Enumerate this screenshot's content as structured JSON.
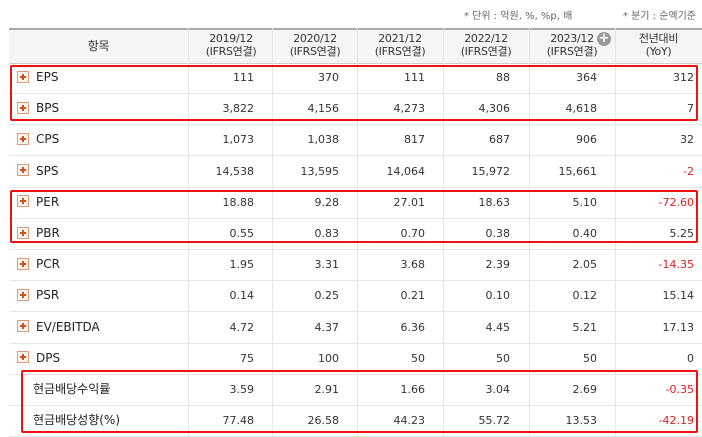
{
  "units_note": "* 단위 : 억원, %, %p, 배",
  "period_note": "* 분기 : 순액기준",
  "header": {
    "item_label": "항목",
    "periods": [
      {
        "year": "2019/12",
        "basis": "(IFRS연결)"
      },
      {
        "year": "2020/12",
        "basis": "(IFRS연결)"
      },
      {
        "year": "2021/12",
        "basis": "(IFRS연결)"
      },
      {
        "year": "2022/12",
        "basis": "(IFRS연결)"
      },
      {
        "year": "2023/12",
        "basis": "(IFRS연결)"
      }
    ],
    "yoy_line1": "전년대비",
    "yoy_line2": "(YoY)",
    "expand_icon": "+"
  },
  "rows": [
    {
      "label": "EPS",
      "values": [
        "111",
        "370",
        "111",
        "88",
        "364"
      ],
      "yoy": "312",
      "negative": false,
      "expandable": true
    },
    {
      "label": "BPS",
      "values": [
        "3,822",
        "4,156",
        "4,273",
        "4,306",
        "4,618"
      ],
      "yoy": "7",
      "negative": false,
      "expandable": true
    },
    {
      "label": "CPS",
      "values": [
        "1,073",
        "1,038",
        "817",
        "687",
        "906"
      ],
      "yoy": "32",
      "negative": false,
      "expandable": true
    },
    {
      "label": "SPS",
      "values": [
        "14,538",
        "13,595",
        "14,064",
        "15,972",
        "15,661"
      ],
      "yoy": "-2",
      "negative": true,
      "expandable": true
    },
    {
      "label": "PER",
      "values": [
        "18.88",
        "9.28",
        "27.01",
        "18.63",
        "5.10"
      ],
      "yoy": "-72.60",
      "negative": true,
      "expandable": true
    },
    {
      "label": "PBR",
      "values": [
        "0.55",
        "0.83",
        "0.70",
        "0.38",
        "0.40"
      ],
      "yoy": "5.25",
      "negative": false,
      "expandable": true
    },
    {
      "label": "PCR",
      "values": [
        "1.95",
        "3.31",
        "3.68",
        "2.39",
        "2.05"
      ],
      "yoy": "-14.35",
      "negative": true,
      "expandable": true
    },
    {
      "label": "PSR",
      "values": [
        "0.14",
        "0.25",
        "0.21",
        "0.10",
        "0.12"
      ],
      "yoy": "15.14",
      "negative": false,
      "expandable": true
    },
    {
      "label": "EV/EBITDA",
      "values": [
        "4.72",
        "4.37",
        "6.36",
        "4.45",
        "5.21"
      ],
      "yoy": "17.13",
      "negative": false,
      "expandable": true
    },
    {
      "label": "DPS",
      "values": [
        "75",
        "100",
        "50",
        "50",
        "50"
      ],
      "yoy": "0",
      "negative": false,
      "expandable": true
    },
    {
      "label": "현금배당수익률",
      "values": [
        "3.59",
        "2.91",
        "1.66",
        "3.04",
        "2.69"
      ],
      "yoy": "-0.35",
      "negative": true,
      "expandable": false
    },
    {
      "label": "현금배당성향(%)",
      "values": [
        "77.48",
        "26.58",
        "44.23",
        "55.72",
        "13.53"
      ],
      "yoy": "-42.19",
      "negative": true,
      "expandable": false
    }
  ],
  "highlight_color": "#ee1111",
  "negative_color": "#e02020"
}
